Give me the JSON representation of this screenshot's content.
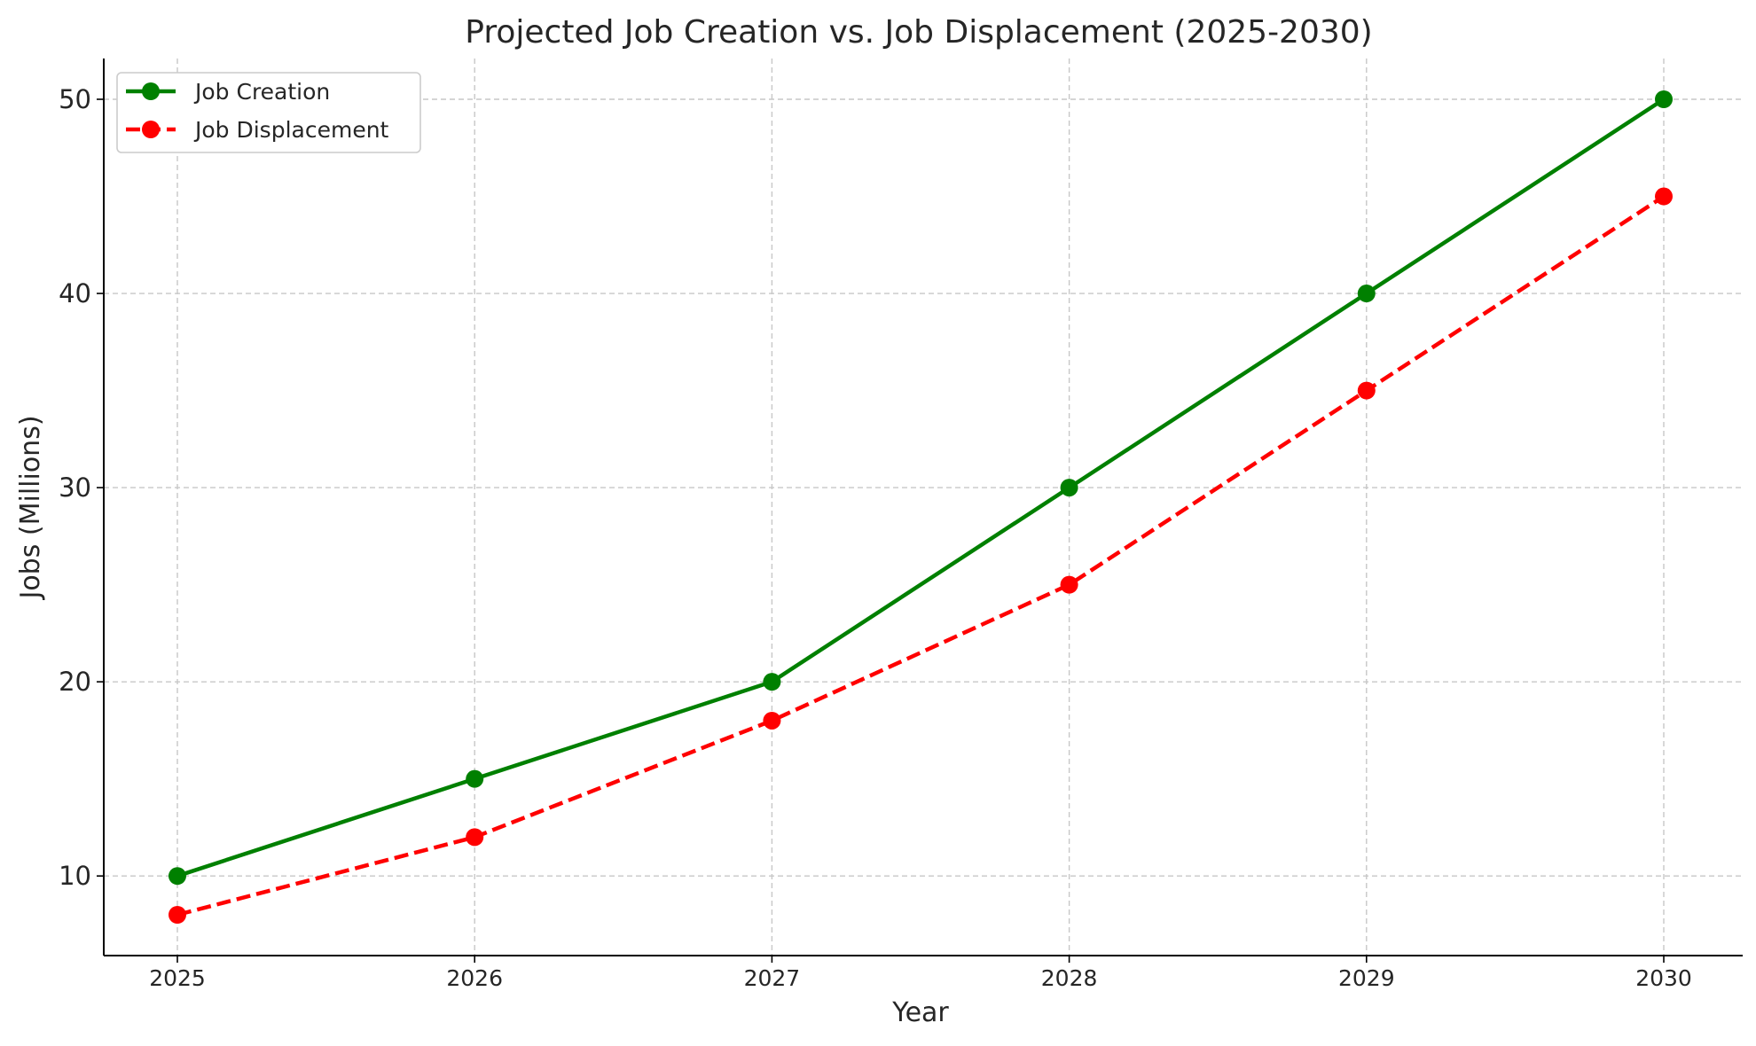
{
  "chart_data": {
    "type": "line",
    "title": "Projected Job Creation vs. Job Displacement (2025-2030)",
    "xlabel": "Year",
    "ylabel": "Jobs (Millions)",
    "x": [
      "2025",
      "2026",
      "2027",
      "2028",
      "2029",
      "2030"
    ],
    "yticks": [
      10,
      20,
      30,
      40,
      50
    ],
    "ylim": [
      5.9,
      52.1
    ],
    "grid": true,
    "legend_position": "top-left",
    "series": [
      {
        "name": "Job Creation",
        "values": [
          10,
          15,
          20,
          30,
          40,
          50
        ],
        "color": "#008000",
        "line_style": "solid",
        "marker": "circle"
      },
      {
        "name": "Job Displacement",
        "values": [
          8,
          12,
          18,
          25,
          35,
          45
        ],
        "color": "#ff0000",
        "line_style": "dashed",
        "marker": "circle"
      }
    ]
  }
}
